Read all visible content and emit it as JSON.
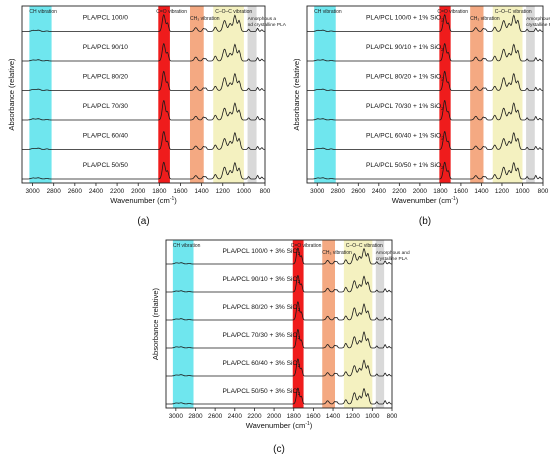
{
  "chart_data": [
    {
      "type": "line",
      "panel_label": "(a)",
      "xlabel": "Wavenumber (cm",
      "xlabel_sup": "-1",
      "xlabel_tail": ")",
      "ylabel": "Absorbance (relative)",
      "xlim": [
        3100,
        800
      ],
      "x_ticks": [
        3000,
        2800,
        2600,
        2400,
        2200,
        2000,
        1800,
        1600,
        1400,
        1200,
        1000,
        800
      ],
      "series": [
        {
          "name": "PLA/PCL 100/0"
        },
        {
          "name": "PLA/PCL 90/10"
        },
        {
          "name": "PLA/PCL 80/20"
        },
        {
          "name": "PLA/PCL 70/30"
        },
        {
          "name": "PLA/PCL 60/40"
        },
        {
          "name": "PLA/PCL 50/50"
        }
      ],
      "bands": [
        {
          "from": 3030,
          "to": 2820,
          "color": "#6fe6ee",
          "label": "CH vibration"
        },
        {
          "from": 1810,
          "to": 1700,
          "color": "#ef1c1c",
          "label": "C=O vibration"
        },
        {
          "from": 1510,
          "to": 1380,
          "color": "#f4a982",
          "label": "CH₃ vibration"
        },
        {
          "from": 1290,
          "to": 1000,
          "color": "#f4f1c0",
          "label": "C–O–C vibration"
        },
        {
          "from": 965,
          "to": 880,
          "color": "#d9d9d9",
          "label": "Amorphous a nd crystalline PLA"
        }
      ]
    },
    {
      "type": "line",
      "panel_label": "(b)",
      "xlabel": "Wavenumber (cm",
      "xlabel_sup": "-1",
      "xlabel_tail": ")",
      "ylabel": "Absorbance (relative)",
      "xlim": [
        3100,
        800
      ],
      "x_ticks": [
        3000,
        2800,
        2600,
        2400,
        2200,
        2000,
        1800,
        1600,
        1400,
        1200,
        1000,
        800
      ],
      "series": [
        {
          "name": "PLA/PCL 100/0 + 1% SiO",
          "sub": "2"
        },
        {
          "name": "PLA/PCL 90/10 + 1% SiO",
          "sub": "2"
        },
        {
          "name": "PLA/PCL 80/20 + 1% SiO",
          "sub": "2"
        },
        {
          "name": "PLA/PCL 70/30 + 1% SiO",
          "sub": "2"
        },
        {
          "name": "PLA/PCL 60/40 + 1% SiO",
          "sub": "2"
        },
        {
          "name": "PLA/PCL 50/50 + 1% SiO",
          "sub": "2"
        }
      ],
      "bands": [
        {
          "from": 3030,
          "to": 2820,
          "color": "#6fe6ee",
          "label": "CH vibration"
        },
        {
          "from": 1810,
          "to": 1700,
          "color": "#ef1c1c",
          "label": "C=O vibration"
        },
        {
          "from": 1510,
          "to": 1380,
          "color": "#f4a982",
          "label": "CH₃ vibration"
        },
        {
          "from": 1290,
          "to": 1000,
          "color": "#f4f1c0",
          "label": "C–O–C vibration"
        },
        {
          "from": 965,
          "to": 880,
          "color": "#d9d9d9",
          "label": "Amorphous and crystalline PLA"
        }
      ]
    },
    {
      "type": "line",
      "panel_label": "(c)",
      "xlabel": "Wavenumber (cm",
      "xlabel_sup": "-1",
      "xlabel_tail": ")",
      "ylabel": "Absorbance (relative)",
      "xlim": [
        3100,
        800
      ],
      "x_ticks": [
        3000,
        2800,
        2600,
        2400,
        2200,
        2000,
        1800,
        1600,
        1400,
        1200,
        1000,
        800
      ],
      "series": [
        {
          "name": "PLA/PCL 100/0 + 3% SiO",
          "sub": "2"
        },
        {
          "name": "PLA/PCL 90/10 + 3% SiO",
          "sub": "2"
        },
        {
          "name": "PLA/PCL 80/20 + 3% SiO",
          "sub": "2"
        },
        {
          "name": "PLA/PCL 70/30 + 3% SiO",
          "sub": "2"
        },
        {
          "name": "PLA/PCL 60/40 + 3% SiO",
          "sub": "2"
        },
        {
          "name": "PLA/PCL 50/50 + 3% SiO",
          "sub": "2"
        }
      ],
      "bands": [
        {
          "from": 3030,
          "to": 2820,
          "color": "#6fe6ee",
          "label": "CH vibration"
        },
        {
          "from": 1810,
          "to": 1700,
          "color": "#ef1c1c",
          "label": "C=O vibration"
        },
        {
          "from": 1510,
          "to": 1380,
          "color": "#f4a982",
          "label": "CH₃ vibration"
        },
        {
          "from": 1290,
          "to": 1000,
          "color": "#f4f1c0",
          "label": "C–O–C vibration"
        },
        {
          "from": 965,
          "to": 880,
          "color": "#d9d9d9",
          "label": "Amorphous and crystalline PLA"
        }
      ]
    }
  ]
}
